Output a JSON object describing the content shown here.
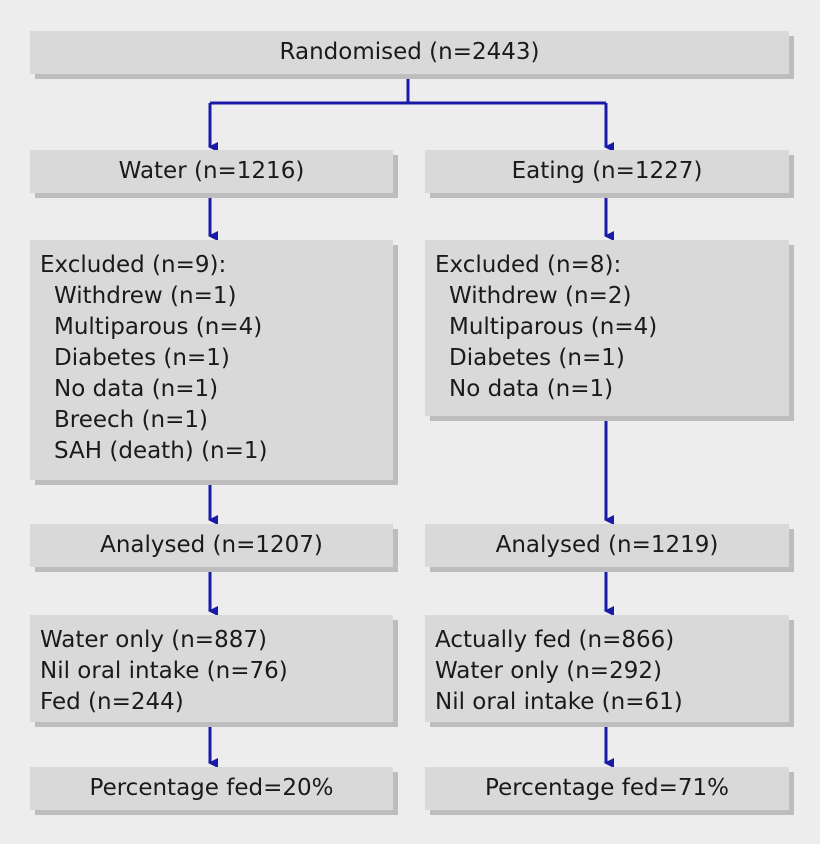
{
  "root": {
    "label": "Randomised (n=2443)"
  },
  "left": {
    "group": "Water (n=1216)",
    "excluded_title": "Excluded (n=9):",
    "excluded_items": [
      "Withdrew (n=1)",
      "Multiparous (n=4)",
      "Diabetes (n=1)",
      "No data (n=1)",
      "Breech (n=1)",
      "SAH (death) (n=1)"
    ],
    "analysed": "Analysed (n=1207)",
    "outcomes": [
      "Water only (n=887)",
      "Nil oral intake (n=76)",
      "Fed (n=244)"
    ],
    "percentage": "Percentage fed=20%"
  },
  "right": {
    "group": "Eating (n=1227)",
    "excluded_title": "Excluded (n=8):",
    "excluded_items": [
      "Withdrew (n=2)",
      "Multiparous (n=4)",
      "Diabetes (n=1)",
      "No data (n=1)"
    ],
    "analysed": "Analysed (n=1219)",
    "outcomes": [
      "Actually fed (n=866)",
      "Water only (n=292)",
      "Nil oral intake (n=61)"
    ],
    "percentage": "Percentage fed=71%"
  },
  "colors": {
    "arrow": "#1a1aa8",
    "box": "#d9d9d9",
    "shadow": "#bdbdbd",
    "background": "#ededed"
  }
}
